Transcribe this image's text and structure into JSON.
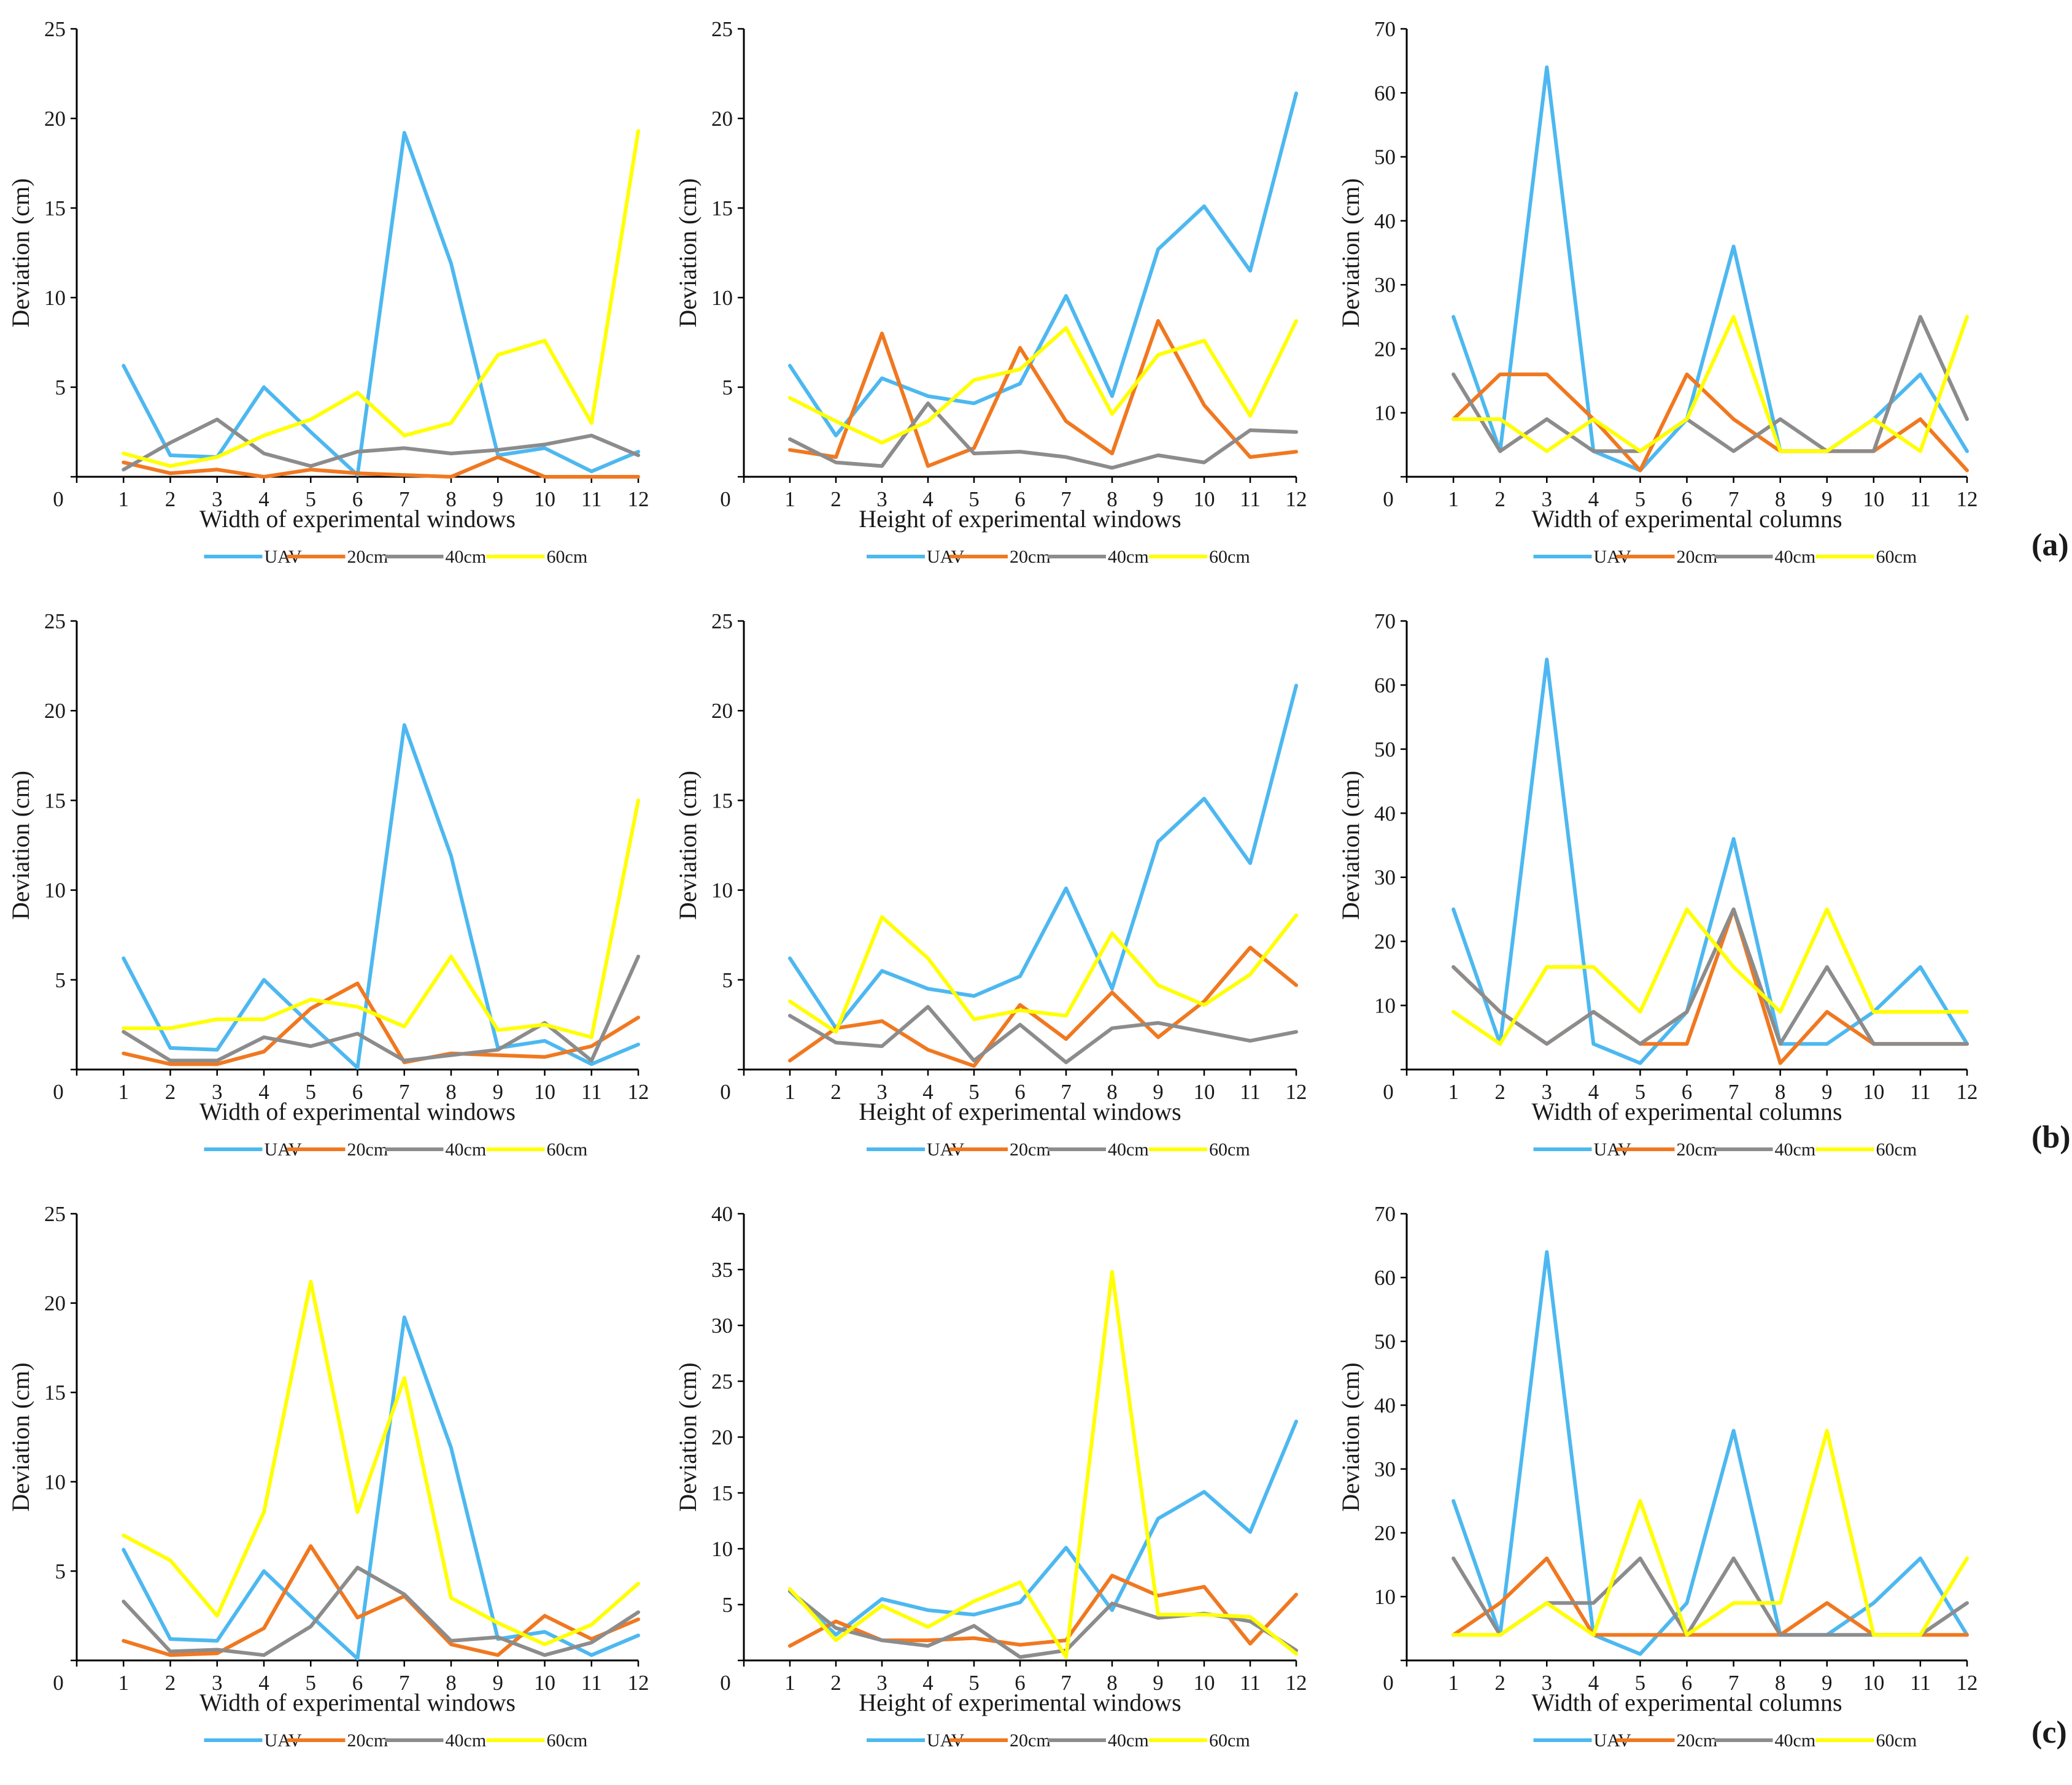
{
  "figure": {
    "row_labels": [
      "(a)",
      "(b)",
      "(c)"
    ],
    "legend": {
      "placement": "bottom-center",
      "entries": [
        {
          "name": "UAV",
          "color": "#4db8f0"
        },
        {
          "name": "20cm",
          "color": "#f07820"
        },
        {
          "name": "40cm",
          "color": "#8c8c8c"
        },
        {
          "name": "60cm",
          "color": "#ffff00"
        }
      ]
    }
  },
  "chart_data": [
    {
      "type": "line",
      "row": "(a)",
      "xlabel": "Width of experimental windows",
      "ylabel": "Deviation (cm)",
      "xlim": [
        0,
        12
      ],
      "ylim": [
        0,
        25
      ],
      "yticks": [
        0,
        5,
        10,
        15,
        20,
        25
      ],
      "ytick_labels": [
        "",
        "5",
        "10",
        "15",
        "20",
        "25"
      ],
      "x": [
        1,
        2,
        3,
        4,
        5,
        6,
        7,
        8,
        9,
        10,
        11,
        12
      ],
      "series": [
        {
          "name": "UAV",
          "color": "#4db8f0",
          "values": [
            6.2,
            1.2,
            1.1,
            5.0,
            2.5,
            0.1,
            19.2,
            11.9,
            1.2,
            1.6,
            0.3,
            1.4
          ]
        },
        {
          "name": "20cm",
          "color": "#f07820",
          "values": [
            0.8,
            0.2,
            0.4,
            0.0,
            0.4,
            0.2,
            0.1,
            0.0,
            1.1,
            0.0,
            0.0,
            0.0
          ]
        },
        {
          "name": "40cm",
          "color": "#8c8c8c",
          "values": [
            0.4,
            1.9,
            3.2,
            1.3,
            0.6,
            1.4,
            1.6,
            1.3,
            1.5,
            1.8,
            2.3,
            1.2
          ]
        },
        {
          "name": "60cm",
          "color": "#ffff00",
          "values": [
            1.3,
            0.6,
            1.1,
            2.3,
            3.2,
            4.7,
            2.3,
            3.0,
            6.8,
            7.6,
            3.0,
            19.3
          ]
        }
      ]
    },
    {
      "type": "line",
      "row": "(a)",
      "xlabel": "Height of experimental windows",
      "ylabel": "Deviation (cm)",
      "xlim": [
        0,
        12
      ],
      "ylim": [
        0,
        25
      ],
      "yticks": [
        0,
        5,
        10,
        15,
        20,
        25
      ],
      "ytick_labels": [
        "",
        "5",
        "10",
        "15",
        "20",
        "25"
      ],
      "x": [
        1,
        2,
        3,
        4,
        5,
        6,
        7,
        8,
        9,
        10,
        11,
        12
      ],
      "series": [
        {
          "name": "UAV",
          "color": "#4db8f0",
          "values": [
            6.2,
            2.3,
            5.5,
            4.5,
            4.1,
            5.2,
            10.1,
            4.5,
            12.7,
            15.1,
            11.5,
            21.4
          ]
        },
        {
          "name": "20cm",
          "color": "#f07820",
          "values": [
            1.5,
            1.1,
            8.0,
            0.6,
            1.6,
            7.2,
            3.1,
            1.3,
            8.7,
            4.0,
            1.1,
            1.4
          ]
        },
        {
          "name": "40cm",
          "color": "#8c8c8c",
          "values": [
            2.1,
            0.8,
            0.6,
            4.1,
            1.3,
            1.4,
            1.1,
            0.5,
            1.2,
            0.8,
            2.6,
            2.5
          ]
        },
        {
          "name": "60cm",
          "color": "#ffff00",
          "values": [
            4.4,
            3.1,
            1.9,
            3.1,
            5.4,
            6.0,
            8.3,
            3.5,
            6.8,
            7.6,
            3.4,
            8.7
          ]
        }
      ]
    },
    {
      "type": "line",
      "row": "(a)",
      "xlabel": "Width of experimental columns",
      "ylabel": "Deviation (cm)",
      "xlim": [
        0,
        12
      ],
      "ylim": [
        0,
        70
      ],
      "yticks": [
        0,
        10,
        20,
        30,
        40,
        50,
        60,
        70
      ],
      "ytick_labels": [
        "",
        "10",
        "20",
        "30",
        "40",
        "50",
        "60",
        "70"
      ],
      "x": [
        1,
        2,
        3,
        4,
        5,
        6,
        7,
        8,
        9,
        10,
        11,
        12
      ],
      "series": [
        {
          "name": "UAV",
          "color": "#4db8f0",
          "values": [
            25,
            4,
            64,
            4,
            1,
            9,
            36,
            4,
            4,
            9,
            16,
            4
          ]
        },
        {
          "name": "20cm",
          "color": "#f07820",
          "values": [
            9,
            16,
            16,
            9,
            1,
            16,
            9,
            4,
            4,
            4,
            9,
            1
          ]
        },
        {
          "name": "40cm",
          "color": "#8c8c8c",
          "values": [
            16,
            4,
            9,
            4,
            4,
            9,
            4,
            9,
            4,
            4,
            25,
            9
          ]
        },
        {
          "name": "60cm",
          "color": "#ffff00",
          "values": [
            9,
            9,
            4,
            9,
            4,
            9,
            25,
            4,
            4,
            9,
            4,
            25
          ]
        }
      ]
    },
    {
      "type": "line",
      "row": "(b)",
      "xlabel": "Width of experimental windows",
      "ylabel": "Deviation (cm)",
      "xlim": [
        0,
        12
      ],
      "ylim": [
        0,
        25
      ],
      "yticks": [
        0,
        5,
        10,
        15,
        20,
        25
      ],
      "ytick_labels": [
        "",
        "5",
        "10",
        "15",
        "20",
        "25"
      ],
      "x": [
        1,
        2,
        3,
        4,
        5,
        6,
        7,
        8,
        9,
        10,
        11,
        12
      ],
      "series": [
        {
          "name": "UAV",
          "color": "#4db8f0",
          "values": [
            6.2,
            1.2,
            1.1,
            5.0,
            2.5,
            0.1,
            19.2,
            11.9,
            1.2,
            1.6,
            0.3,
            1.4
          ]
        },
        {
          "name": "20cm",
          "color": "#f07820",
          "values": [
            0.9,
            0.3,
            0.3,
            1.0,
            3.4,
            4.8,
            0.4,
            0.9,
            0.8,
            0.7,
            1.3,
            2.9
          ]
        },
        {
          "name": "40cm",
          "color": "#8c8c8c",
          "values": [
            2.1,
            0.5,
            0.5,
            1.8,
            1.3,
            2.0,
            0.5,
            0.8,
            1.1,
            2.6,
            0.5,
            6.3
          ]
        },
        {
          "name": "60cm",
          "color": "#ffff00",
          "values": [
            2.3,
            2.3,
            2.8,
            2.8,
            3.9,
            3.5,
            2.4,
            6.3,
            2.2,
            2.5,
            1.8,
            15.0
          ]
        }
      ]
    },
    {
      "type": "line",
      "row": "(b)",
      "xlabel": "Height of experimental windows",
      "ylabel": "Deviation (cm)",
      "xlim": [
        0,
        12
      ],
      "ylim": [
        0,
        25
      ],
      "yticks": [
        0,
        5,
        10,
        15,
        20,
        25
      ],
      "ytick_labels": [
        "",
        "5",
        "10",
        "15",
        "20",
        "25"
      ],
      "x": [
        1,
        2,
        3,
        4,
        5,
        6,
        7,
        8,
        9,
        10,
        11,
        12
      ],
      "series": [
        {
          "name": "UAV",
          "color": "#4db8f0",
          "values": [
            6.2,
            2.3,
            5.5,
            4.5,
            4.1,
            5.2,
            10.1,
            4.5,
            12.7,
            15.1,
            11.5,
            21.4
          ]
        },
        {
          "name": "20cm",
          "color": "#f07820",
          "values": [
            0.5,
            2.3,
            2.7,
            1.1,
            0.2,
            3.6,
            1.7,
            4.3,
            1.8,
            3.8,
            6.8,
            4.7
          ]
        },
        {
          "name": "40cm",
          "color": "#8c8c8c",
          "values": [
            3.0,
            1.5,
            1.3,
            3.5,
            0.5,
            2.5,
            0.4,
            2.3,
            2.6,
            2.1,
            1.6,
            2.1
          ]
        },
        {
          "name": "60cm",
          "color": "#ffff00",
          "values": [
            3.8,
            2.1,
            8.5,
            6.2,
            2.8,
            3.3,
            3.0,
            7.6,
            4.7,
            3.6,
            5.3,
            8.6
          ]
        }
      ]
    },
    {
      "type": "line",
      "row": "(b)",
      "xlabel": "Width of experimental columns",
      "ylabel": "Deviation (cm)",
      "xlim": [
        0,
        12
      ],
      "ylim": [
        0,
        70
      ],
      "yticks": [
        0,
        10,
        20,
        30,
        40,
        50,
        60,
        70
      ],
      "ytick_labels": [
        "",
        "10",
        "20",
        "30",
        "40",
        "50",
        "60",
        "70"
      ],
      "x": [
        1,
        2,
        3,
        4,
        5,
        6,
        7,
        8,
        9,
        10,
        11,
        12
      ],
      "series": [
        {
          "name": "UAV",
          "color": "#4db8f0",
          "values": [
            25,
            4,
            64,
            4,
            1,
            9,
            36,
            4,
            4,
            9,
            16,
            4
          ]
        },
        {
          "name": "20cm",
          "color": "#f07820",
          "values": [
            16,
            9,
            4,
            9,
            4,
            4,
            25,
            1,
            9,
            4,
            4,
            4
          ]
        },
        {
          "name": "40cm",
          "color": "#8c8c8c",
          "values": [
            16,
            9,
            4,
            9,
            4,
            9,
            25,
            4,
            16,
            4,
            4,
            4
          ]
        },
        {
          "name": "60cm",
          "color": "#ffff00",
          "values": [
            9,
            4,
            16,
            16,
            9,
            25,
            16,
            9,
            25,
            9,
            9,
            9
          ]
        }
      ]
    },
    {
      "type": "line",
      "row": "(c)",
      "xlabel": "Width of experimental windows",
      "ylabel": "Deviation (cm)",
      "xlim": [
        0,
        12
      ],
      "ylim": [
        0,
        25
      ],
      "yticks": [
        0,
        5,
        10,
        15,
        20,
        25
      ],
      "ytick_labels": [
        "",
        "5",
        "10",
        "15",
        "20",
        "25"
      ],
      "x": [
        1,
        2,
        3,
        4,
        5,
        6,
        7,
        8,
        9,
        10,
        11,
        12
      ],
      "series": [
        {
          "name": "UAV",
          "color": "#4db8f0",
          "values": [
            6.2,
            1.2,
            1.1,
            5.0,
            2.5,
            0.1,
            19.2,
            11.9,
            1.2,
            1.6,
            0.3,
            1.4
          ]
        },
        {
          "name": "20cm",
          "color": "#f07820",
          "values": [
            1.1,
            0.3,
            0.4,
            1.8,
            6.4,
            2.4,
            3.6,
            0.9,
            0.3,
            2.5,
            1.2,
            2.3
          ]
        },
        {
          "name": "40cm",
          "color": "#8c8c8c",
          "values": [
            3.3,
            0.5,
            0.6,
            0.3,
            1.9,
            5.2,
            3.7,
            1.1,
            1.3,
            0.3,
            1.0,
            2.7
          ]
        },
        {
          "name": "60cm",
          "color": "#ffff00",
          "values": [
            7.0,
            5.6,
            2.5,
            8.3,
            21.2,
            8.3,
            15.8,
            3.5,
            2.1,
            0.9,
            2.0,
            4.3
          ]
        }
      ]
    },
    {
      "type": "line",
      "row": "(c)",
      "xlabel": "Height of experimental windows",
      "ylabel": "Deviation (cm)",
      "xlim": [
        0,
        12
      ],
      "ylim": [
        0,
        40
      ],
      "yticks": [
        0,
        5,
        10,
        15,
        20,
        25,
        30,
        35,
        40
      ],
      "ytick_labels": [
        "",
        "5",
        "10",
        "15",
        "20",
        "25",
        "30",
        "35",
        "40"
      ],
      "x": [
        1,
        2,
        3,
        4,
        5,
        6,
        7,
        8,
        9,
        10,
        11,
        12
      ],
      "series": [
        {
          "name": "UAV",
          "color": "#4db8f0",
          "values": [
            6.2,
            2.3,
            5.5,
            4.5,
            4.1,
            5.2,
            10.1,
            4.5,
            12.7,
            15.1,
            11.5,
            21.4
          ]
        },
        {
          "name": "20cm",
          "color": "#f07820",
          "values": [
            1.3,
            3.5,
            1.8,
            1.8,
            2.0,
            1.4,
            1.8,
            7.6,
            5.8,
            6.6,
            1.5,
            5.9
          ]
        },
        {
          "name": "40cm",
          "color": "#8c8c8c",
          "values": [
            6.2,
            2.9,
            1.8,
            1.3,
            3.1,
            0.3,
            0.9,
            5.1,
            3.8,
            4.2,
            3.5,
            0.9
          ]
        },
        {
          "name": "60cm",
          "color": "#ffff00",
          "values": [
            6.4,
            1.8,
            4.9,
            3.0,
            5.3,
            7.0,
            0.3,
            34.8,
            4.1,
            4.1,
            3.9,
            0.6
          ]
        }
      ]
    },
    {
      "type": "line",
      "row": "(c)",
      "xlabel": "Width of experimental columns",
      "ylabel": "Deviation (cm)",
      "xlim": [
        0,
        12
      ],
      "ylim": [
        0,
        70
      ],
      "yticks": [
        0,
        10,
        20,
        30,
        40,
        50,
        60,
        70
      ],
      "ytick_labels": [
        "",
        "10",
        "20",
        "30",
        "40",
        "50",
        "60",
        "70"
      ],
      "x": [
        1,
        2,
        3,
        4,
        5,
        6,
        7,
        8,
        9,
        10,
        11,
        12
      ],
      "series": [
        {
          "name": "UAV",
          "color": "#4db8f0",
          "values": [
            25,
            4,
            64,
            4,
            1,
            9,
            36,
            4,
            4,
            9,
            16,
            4
          ]
        },
        {
          "name": "20cm",
          "color": "#f07820",
          "values": [
            4,
            9,
            16,
            4,
            4,
            4,
            4,
            4,
            9,
            4,
            4,
            4
          ]
        },
        {
          "name": "40cm",
          "color": "#8c8c8c",
          "values": [
            16,
            4,
            9,
            9,
            16,
            4,
            16,
            4,
            4,
            4,
            4,
            9
          ]
        },
        {
          "name": "60cm",
          "color": "#ffff00",
          "values": [
            4,
            4,
            9,
            4,
            25,
            4,
            9,
            9,
            36,
            4,
            4,
            16
          ]
        }
      ]
    }
  ]
}
